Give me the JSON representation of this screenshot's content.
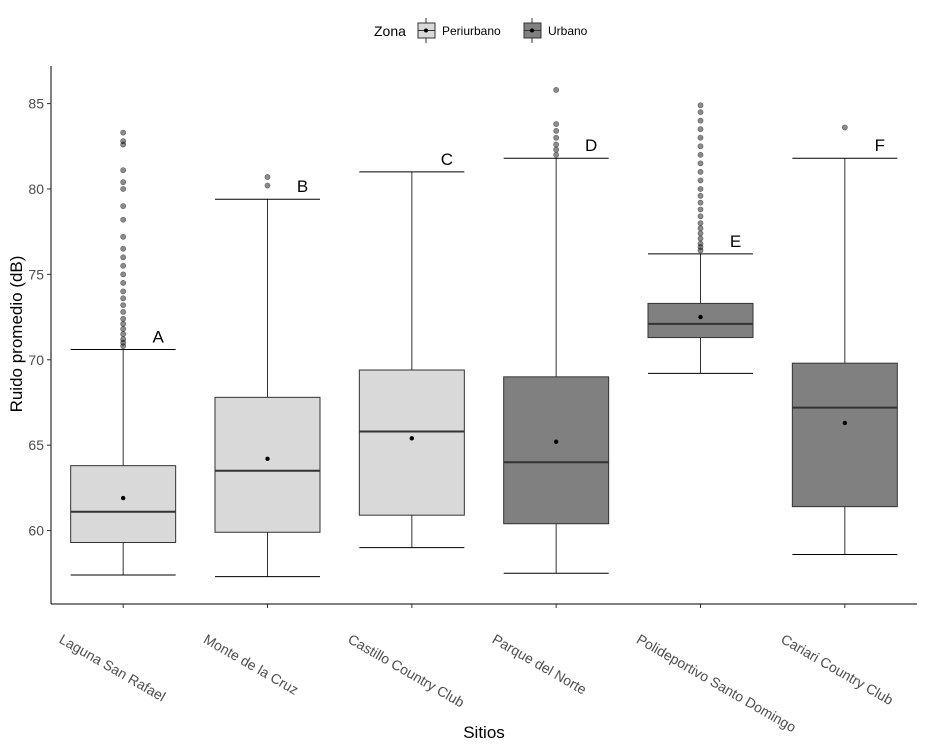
{
  "chart_data": {
    "type": "boxplot",
    "xlabel": "Sitios",
    "ylabel": "Ruido promedio (dB)",
    "ylim": [
      55.7,
      87.2
    ],
    "yticks": [
      60,
      65,
      70,
      75,
      80,
      85
    ],
    "grid": false,
    "legend": {
      "title": "Zona",
      "position": "top",
      "entries": [
        {
          "name": "Periurbano",
          "color": "#d9d9d9"
        },
        {
          "name": "Urbano",
          "color": "#808080"
        }
      ]
    },
    "categories": [
      "Laguna San Rafael",
      "Monte de la Cruz",
      "Castillo Country Club",
      "Parque del Norte",
      "Polideportivo Santo Domingo",
      "Cariari Country Club"
    ],
    "boxes": [
      {
        "zona": "Periurbano",
        "min": 57.4,
        "q1": 59.3,
        "median": 61.1,
        "q3": 63.8,
        "max": 70.6,
        "mean": 61.9,
        "letter": "A",
        "outliers": [
          70.8,
          71.0,
          71.2,
          71.5,
          71.8,
          72.1,
          72.4,
          72.8,
          73.2,
          73.6,
          74.0,
          74.5,
          75.0,
          75.5,
          76.0,
          76.5,
          77.2,
          78.2,
          79.0,
          80.0,
          80.4,
          81.1,
          82.6,
          82.8,
          83.3
        ]
      },
      {
        "zona": "Periurbano",
        "min": 57.3,
        "q1": 59.9,
        "median": 63.5,
        "q3": 67.8,
        "max": 79.4,
        "mean": 64.2,
        "letter": "B",
        "outliers": [
          80.2,
          80.7
        ]
      },
      {
        "zona": "Periurbano",
        "min": 59.0,
        "q1": 60.9,
        "median": 65.8,
        "q3": 69.4,
        "max": 81.0,
        "mean": 65.4,
        "letter": "C",
        "outliers": []
      },
      {
        "zona": "Urbano",
        "min": 57.5,
        "q1": 60.4,
        "median": 64.0,
        "q3": 69.0,
        "max": 81.8,
        "mean": 65.2,
        "letter": "D",
        "outliers": [
          82.0,
          82.3,
          82.6,
          83.0,
          83.4,
          83.8,
          85.8
        ]
      },
      {
        "zona": "Urbano",
        "min": 69.2,
        "q1": 71.3,
        "median": 72.1,
        "q3": 73.3,
        "max": 76.2,
        "mean": 72.5,
        "letter": "E",
        "outliers": [
          76.4,
          76.6,
          76.8,
          77.1,
          77.4,
          77.7,
          78.0,
          78.4,
          78.8,
          79.2,
          79.6,
          80.0,
          80.5,
          81.0,
          81.5,
          82.0,
          82.5,
          83.0,
          83.5,
          84.0,
          84.5,
          84.9
        ]
      },
      {
        "zona": "Urbano",
        "min": 58.6,
        "q1": 61.4,
        "median": 67.2,
        "q3": 69.8,
        "max": 81.8,
        "mean": 66.3,
        "letter": "F",
        "outliers": [
          83.6
        ]
      }
    ]
  }
}
